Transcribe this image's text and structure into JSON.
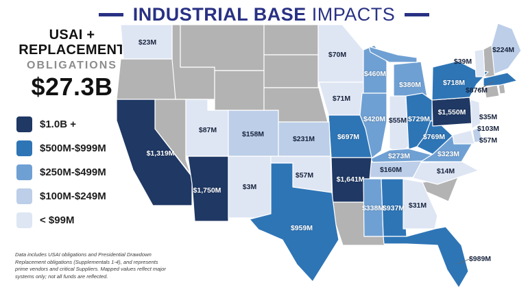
{
  "header": {
    "title_strong": "INDUSTRIAL BASE",
    "title_light": "IMPACTS"
  },
  "summary": {
    "line1": "USAI +",
    "line2": "REPLACEMENT",
    "line3": "OBLIGATIONS",
    "total": "$27.3B"
  },
  "colors": {
    "title": "#293184",
    "tier_1b": "#1F3864",
    "tier_500": "#2E75B6",
    "tier_250": "#6FA0D3",
    "tier_100": "#BCCEE8",
    "tier_99": "#DEE6F4",
    "no_data": "#B3B3B3",
    "label_light": "#FFFFFF",
    "label_dark": "#18233C"
  },
  "legend": {
    "items": [
      {
        "label": "$1.0B +",
        "color_key": "tier_1b"
      },
      {
        "label": "$500M-$999M",
        "color_key": "tier_500"
      },
      {
        "label": "$250M-$499M",
        "color_key": "tier_250"
      },
      {
        "label": "$100M-$249M",
        "color_key": "tier_100"
      },
      {
        "label": "< $99M",
        "color_key": "tier_99"
      }
    ]
  },
  "map": {
    "states": [
      {
        "id": "WA",
        "name": "Washington",
        "value": "$23M",
        "tier": "tier_99"
      },
      {
        "id": "CA",
        "name": "California",
        "value": "$1,319M",
        "tier": "tier_1b"
      },
      {
        "id": "AZ",
        "name": "Arizona",
        "value": "$1,750M",
        "tier": "tier_1b"
      },
      {
        "id": "NM",
        "name": "New Mexico",
        "value": "$3M",
        "tier": "tier_99"
      },
      {
        "id": "UT",
        "name": "Utah",
        "value": "$87M",
        "tier": "tier_99"
      },
      {
        "id": "CO",
        "name": "Colorado",
        "value": "$158M",
        "tier": "tier_100"
      },
      {
        "id": "MN",
        "name": "Minnesota",
        "value": "$70M",
        "tier": "tier_99"
      },
      {
        "id": "IA",
        "name": "Iowa",
        "value": "$71M",
        "tier": "tier_99"
      },
      {
        "id": "WI",
        "name": "Wisconsin",
        "value": "$460M",
        "tier": "tier_250"
      },
      {
        "id": "MI",
        "name": "Michigan",
        "value": "$380M",
        "tier": "tier_250"
      },
      {
        "id": "IL",
        "name": "Illinois",
        "value": "$420M",
        "tier": "tier_250"
      },
      {
        "id": "IN",
        "name": "Indiana",
        "value": "$55M",
        "tier": "tier_99"
      },
      {
        "id": "OH",
        "name": "Ohio",
        "value": "$729M",
        "tier": "tier_500"
      },
      {
        "id": "KY",
        "name": "Kentucky",
        "value": "$273M",
        "tier": "tier_250"
      },
      {
        "id": "TN",
        "name": "Tennessee",
        "value": "$160M",
        "tier": "tier_100"
      },
      {
        "id": "MO",
        "name": "Missouri",
        "value": "$697M",
        "tier": "tier_500"
      },
      {
        "id": "KS",
        "name": "Kansas",
        "value": "$231M",
        "tier": "tier_100"
      },
      {
        "id": "OK",
        "name": "Oklahoma",
        "value": "$57M",
        "tier": "tier_99"
      },
      {
        "id": "AR",
        "name": "Arkansas",
        "value": "$1,641M",
        "tier": "tier_1b"
      },
      {
        "id": "TX",
        "name": "Texas",
        "value": "$959M",
        "tier": "tier_500"
      },
      {
        "id": "MS",
        "name": "Mississippi",
        "value": "$338M",
        "tier": "tier_250"
      },
      {
        "id": "AL",
        "name": "Alabama",
        "value": "$937M",
        "tier": "tier_500"
      },
      {
        "id": "GA",
        "name": "Georgia",
        "value": "$31M",
        "tier": "tier_99"
      },
      {
        "id": "FL",
        "name": "Florida",
        "value": "$989M",
        "tier": "tier_500",
        "label_dark": true
      },
      {
        "id": "NC",
        "name": "North Carolina",
        "value": "$14M",
        "tier": "tier_99"
      },
      {
        "id": "VA",
        "name": "Virginia",
        "value": "$323M",
        "tier": "tier_250"
      },
      {
        "id": "WV",
        "name": "West Virginia",
        "value": "$769M",
        "tier": "tier_500"
      },
      {
        "id": "PA",
        "name": "Pennsylvania",
        "value": "$1,550M",
        "tier": "tier_1b"
      },
      {
        "id": "NY",
        "name": "New York",
        "value": "$718M",
        "tier": "tier_500"
      },
      {
        "id": "NJ",
        "name": "New Jersey",
        "value": "$35M",
        "tier": "tier_99"
      },
      {
        "id": "DE",
        "name": "Delaware",
        "value": "$103M",
        "tier": "tier_100"
      },
      {
        "id": "MD",
        "name": "Maryland",
        "value": "$57M",
        "tier": "tier_99"
      },
      {
        "id": "VT",
        "name": "Vermont",
        "value": "$39M",
        "tier": "tier_99"
      },
      {
        "id": "MA",
        "name": "Massachusetts",
        "value": "$876M",
        "tier": "tier_500",
        "label_dark": true
      },
      {
        "id": "ME",
        "name": "Maine",
        "value": "$224M",
        "tier": "tier_100"
      }
    ],
    "no_data_states": [
      "OR",
      "ID",
      "MT",
      "WY",
      "NV",
      "ND",
      "SD",
      "NE",
      "LA",
      "SC",
      "NH",
      "CT",
      "RI"
    ]
  },
  "footnote": "Data includes USAI obligations and Presidential Drawdown Replacement obligations (Supplementals 1-4), and represents prime vendors and critical Suppliers. Mapped values reflect major systems only; not all funds are reflected."
}
